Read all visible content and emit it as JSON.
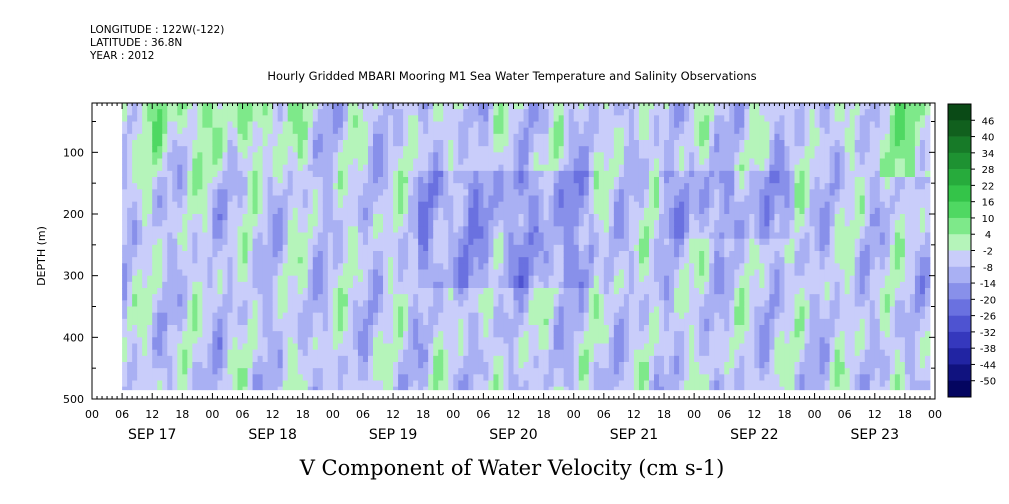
{
  "header": {
    "longitude": "LONGITUDE : 122W(-122)",
    "latitude": "LATITUDE : 36.8N",
    "year": "YEAR : 2012",
    "title": "Hourly Gridded MBARI Mooring M1 Sea Water Temperature and Salinity Observations"
  },
  "chart_data": {
    "type": "heatmap",
    "title": "V Component of Water Velocity (cm s-1)",
    "ylabel": "DEPTH (m)",
    "xlabel": "",
    "ylim": [
      500,
      20
    ],
    "y_ticks": [
      "100",
      "200",
      "300",
      "400",
      "500"
    ],
    "y_tick_values": [
      100,
      200,
      300,
      400,
      500
    ],
    "x_range_hours": [
      0,
      168
    ],
    "x_hour_labels": [
      "00",
      "06",
      "12",
      "18"
    ],
    "days": [
      "SEP 17",
      "SEP 18",
      "SEP 19",
      "SEP 20",
      "SEP 21",
      "SEP 22",
      "SEP 23"
    ],
    "colorbar": {
      "levels": [
        "46",
        "40",
        "34",
        "28",
        "22",
        "16",
        "10",
        "4",
        "-2",
        "-8",
        "-14",
        "-20",
        "-26",
        "-32",
        "-38",
        "-44",
        "-50"
      ],
      "colors": [
        "#0a4a16",
        "#11601e",
        "#177a28",
        "#1e9232",
        "#27ab3c",
        "#34c449",
        "#4fd862",
        "#7ee98a",
        "#b5f4ba",
        "#c9cdfa",
        "#a9b0f3",
        "#8890ea",
        "#6a71e0",
        "#4e53d1",
        "#3538bd",
        "#2124a3",
        "#10127f",
        "#040560"
      ]
    },
    "data_start_hour": 6,
    "data_end_hour": 167,
    "data_max_depth": 485,
    "min_depth": 20
  }
}
